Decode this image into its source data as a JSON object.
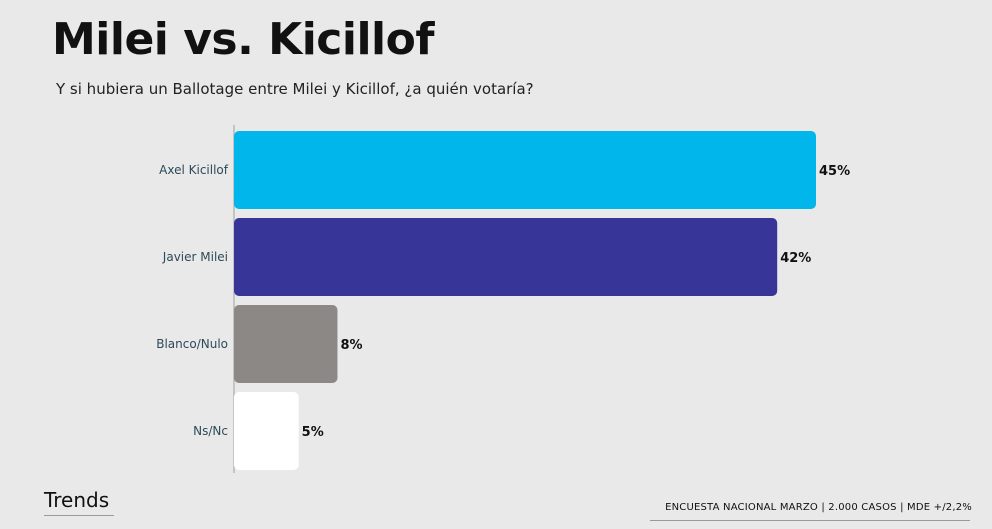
{
  "header": {
    "title": "Milei vs. Kicillof",
    "subtitle": "Y si hubiera un Ballotage entre Milei y Kicillof, ¿a quién votaría?"
  },
  "chart_data": {
    "type": "bar",
    "orientation": "horizontal",
    "categories": [
      "Axel Kicillof",
      "Javier Milei",
      "Blanco/Nulo",
      "Ns/Nc"
    ],
    "values": [
      45,
      42,
      8,
      5
    ],
    "value_labels": [
      "45%",
      "42%",
      "8%",
      "5%"
    ],
    "colors": [
      "#00b6ea",
      "#373597",
      "#8c8886",
      "#ffffff"
    ],
    "xlim": [
      0,
      45
    ],
    "grid": false
  },
  "footer": {
    "brand": "Trends",
    "note": "ENCUESTA NACIONAL MARZO | 2.000 CASOS | MDE +/2,2%"
  }
}
